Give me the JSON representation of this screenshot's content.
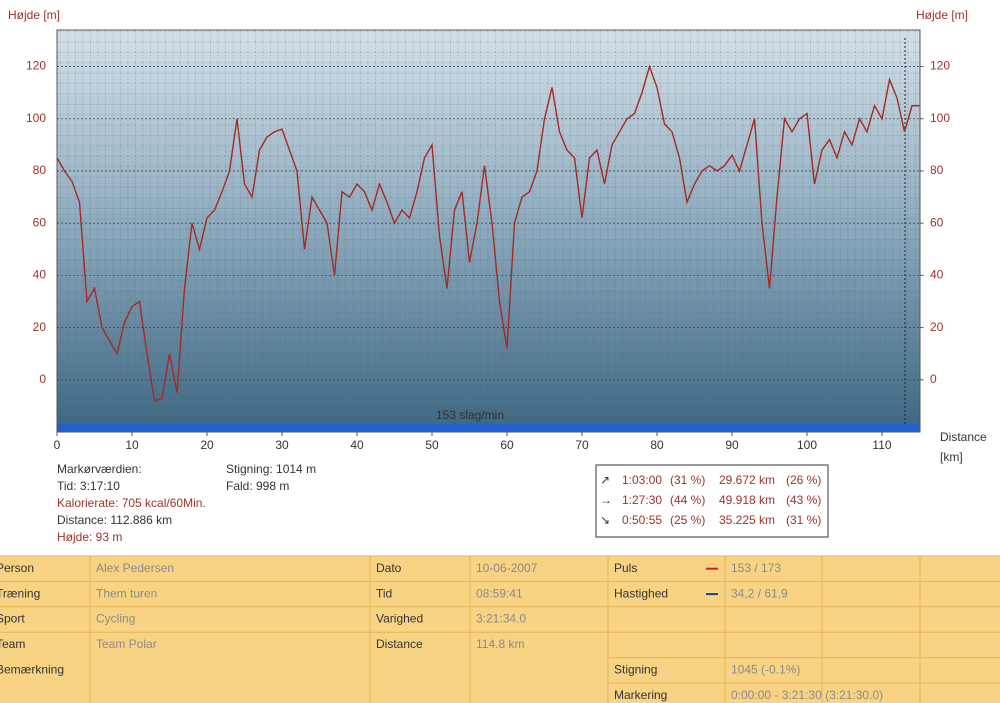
{
  "chart_data": {
    "type": "line",
    "y_axis_label": "Højde [m]",
    "y2_axis_label": "Højde [m]",
    "x_axis_label": "Distance",
    "x_axis_unit": "[km]",
    "xlim": [
      0,
      115
    ],
    "xticks": [
      0,
      10,
      20,
      30,
      40,
      50,
      60,
      70,
      80,
      90,
      100,
      110
    ],
    "ylim": [
      -20,
      134
    ],
    "yticks": [
      0,
      20,
      40,
      60,
      80,
      100,
      120
    ],
    "y2lim": [
      -20,
      134
    ],
    "y2ticks": [
      0,
      20,
      40,
      60,
      80,
      100,
      120
    ],
    "x": [
      0,
      1,
      2,
      3,
      4,
      5,
      6,
      7,
      8,
      9,
      10,
      11,
      12,
      13,
      14,
      15,
      16,
      17,
      18,
      19,
      20,
      21,
      22,
      23,
      24,
      25,
      26,
      27,
      28,
      29,
      30,
      31,
      32,
      33,
      34,
      35,
      36,
      37,
      38,
      39,
      40,
      41,
      42,
      43,
      44,
      45,
      46,
      47,
      48,
      49,
      50,
      51,
      52,
      53,
      54,
      55,
      56,
      57,
      58,
      59,
      60,
      61,
      62,
      63,
      64,
      65,
      66,
      67,
      68,
      69,
      70,
      71,
      72,
      73,
      74,
      75,
      76,
      77,
      78,
      79,
      80,
      81,
      82,
      83,
      84,
      85,
      86,
      87,
      88,
      89,
      90,
      91,
      92,
      93,
      94,
      95,
      96,
      97,
      98,
      99,
      100,
      101,
      102,
      103,
      104,
      105,
      106,
      107,
      108,
      109,
      110,
      111,
      112,
      113,
      114,
      115
    ],
    "series": [
      {
        "color": "#a52a22",
        "values": [
          85,
          80,
          76,
          68,
          30,
          35,
          20,
          15,
          10,
          22,
          28,
          30,
          10,
          -8,
          -7,
          10,
          -5,
          35,
          60,
          50,
          62,
          65,
          72,
          80,
          100,
          75,
          70,
          88,
          93,
          95,
          96,
          88,
          80,
          50,
          70,
          65,
          60,
          40,
          72,
          70,
          75,
          72,
          65,
          75,
          68,
          60,
          65,
          62,
          72,
          85,
          90,
          55,
          35,
          65,
          72,
          45,
          60,
          82,
          60,
          30,
          12,
          60,
          70,
          72,
          80,
          100,
          112,
          95,
          88,
          85,
          62,
          85,
          88,
          75,
          90,
          95,
          100,
          102,
          110,
          120,
          112,
          98,
          95,
          85,
          68,
          75,
          80,
          82,
          80,
          82,
          86,
          80,
          90,
          100,
          60,
          35,
          70,
          100,
          95,
          100,
          102,
          75,
          88,
          92,
          85,
          95,
          90,
          100,
          95,
          105,
          100,
          115,
          108,
          95,
          105,
          105
        ]
      }
    ],
    "hr_band": {
      "label": "153 slag/min",
      "color": "#1f5fd0"
    }
  },
  "marker_panel": {
    "title": "Markørværdien:",
    "time": "Tid: 3:17:10",
    "calorie": "Kalorierate: 705 kcal/60Min.",
    "distance": "Distance: 112.886 km",
    "altitude": "Højde: 93 m"
  },
  "totals": {
    "ascent": "Stigning: 1014 m",
    "descent": "Fald: 998 m"
  },
  "zones": [
    {
      "arrow": "↗",
      "time": "1:03:00",
      "time_pct": "(31 %)",
      "distance": "29.672 km",
      "distance_pct": "(26 %)"
    },
    {
      "arrow": "→",
      "time": "1:27:30",
      "time_pct": "(44 %)",
      "distance": "49.918 km",
      "distance_pct": "(43 %)"
    },
    {
      "arrow": "↘",
      "time": "0:50:55",
      "time_pct": "(25 %)",
      "distance": "35.225 km",
      "distance_pct": "(31 %)"
    }
  ],
  "table": {
    "rows": [
      [
        "Person",
        "Alex Pedersen",
        "Dato",
        "10-06-2007",
        "Puls",
        "153 / 173"
      ],
      [
        "Træning",
        "Them turen",
        "Tid",
        "08:59:41",
        "Hastighed",
        "34,2 / 61,9"
      ],
      [
        "Sport",
        "Cycling",
        "Varighed",
        "3:21:34.0",
        "",
        ""
      ],
      [
        "Team",
        "Team Polar",
        "Distance",
        "114.8 km",
        "",
        ""
      ],
      [
        "Bemærkning",
        "",
        "",
        "",
        "Stigning",
        "1045 (-0.1%)"
      ],
      [
        "",
        "",
        "",
        "",
        "Markering",
        "0:00:00 - 3:21:30 (3:21:30.0)"
      ]
    ]
  }
}
